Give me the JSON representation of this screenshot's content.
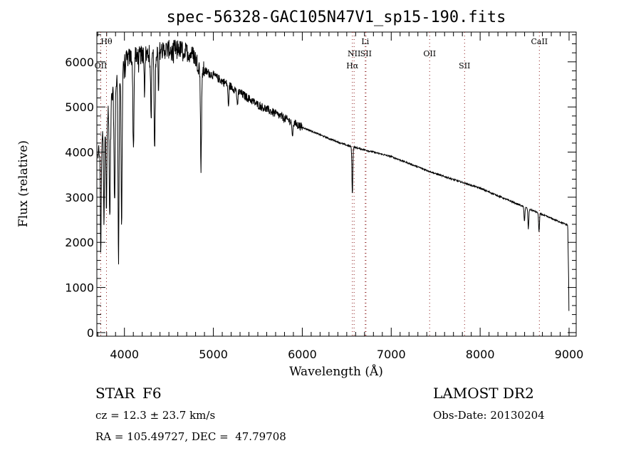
{
  "chart_data": {
    "type": "line",
    "title": "spec-56328-GAC105N47V1_sp15-190.fits",
    "xlabel": "Wavelength (Å)",
    "ylabel": "Flux (relative)",
    "xlim": [
      3690,
      9080
    ],
    "ylim": [
      -80,
      6660
    ],
    "xticks": [
      4000,
      5000,
      6000,
      7000,
      8000,
      9000
    ],
    "yticks": [
      0,
      1000,
      2000,
      3000,
      4000,
      5000,
      6000
    ],
    "grid": false,
    "continuum": [
      [
        3700,
        3900
      ],
      [
        3780,
        4600
      ],
      [
        3850,
        5100
      ],
      [
        3950,
        5900
      ],
      [
        4050,
        6100
      ],
      [
        4200,
        6150
      ],
      [
        4400,
        6250
      ],
      [
        4600,
        6300
      ],
      [
        4780,
        6150
      ],
      [
        4850,
        5850
      ],
      [
        5000,
        5700
      ],
      [
        5200,
        5450
      ],
      [
        5500,
        5050
      ],
      [
        5800,
        4750
      ],
      [
        6000,
        4550
      ],
      [
        6300,
        4300
      ],
      [
        6500,
        4150
      ],
      [
        7000,
        3900
      ],
      [
        7500,
        3520
      ],
      [
        8000,
        3200
      ],
      [
        8500,
        2780
      ],
      [
        8900,
        2450
      ],
      [
        8985,
        2380
      ],
      [
        8995,
        1200
      ],
      [
        9000,
        0
      ]
    ],
    "absorption": [
      [
        3734,
        2400,
        5
      ],
      [
        3770,
        2200,
        5
      ],
      [
        3798,
        2000,
        5
      ],
      [
        3835,
        2500,
        6
      ],
      [
        3889,
        2600,
        6
      ],
      [
        3934,
        4100,
        6
      ],
      [
        3968,
        3600,
        6
      ],
      [
        4101,
        2100,
        6
      ],
      [
        4226,
        800,
        4
      ],
      [
        4300,
        1500,
        5
      ],
      [
        4340,
        2200,
        6
      ],
      [
        4383,
        800,
        4
      ],
      [
        4861,
        2100,
        6
      ],
      [
        5169,
        500,
        5
      ],
      [
        5270,
        400,
        5
      ],
      [
        5890,
        400,
        5
      ],
      [
        6563,
        1050,
        5
      ],
      [
        8498,
        300,
        5
      ],
      [
        8542,
        450,
        5
      ],
      [
        8662,
        400,
        5
      ]
    ],
    "noise_amplitude_blue": 420,
    "noise_amplitude_red": 35,
    "line_markers": [
      {
        "label": "Hθ",
        "wavelength": 3798,
        "row": 0
      },
      {
        "label": "OII",
        "wavelength": 3734,
        "row": 2
      },
      {
        "label": "Hα",
        "wavelength": 6563,
        "row": 2
      },
      {
        "label": "NII",
        "wavelength": 6583,
        "row": 1
      },
      {
        "label": "SII",
        "wavelength": 6716,
        "row": 1
      },
      {
        "label": "Li",
        "wavelength": 6708,
        "row": 0
      },
      {
        "label": "OII",
        "wavelength": 7432,
        "row": 1
      },
      {
        "label": "SII",
        "wavelength": 7825,
        "row": 2
      },
      {
        "label": "CaII",
        "wavelength": 8666,
        "row": 0
      }
    ],
    "marker_color": "#8b1a1a"
  },
  "info": {
    "object_class": "STAR",
    "subclass": "F6",
    "redshift": "cz = 12.3 ± 23.7 km/s",
    "coords": "RA = 105.49727, DEC =  47.79708",
    "survey": "LAMOST DR2",
    "obs_date": "Obs-Date: 20130204"
  }
}
